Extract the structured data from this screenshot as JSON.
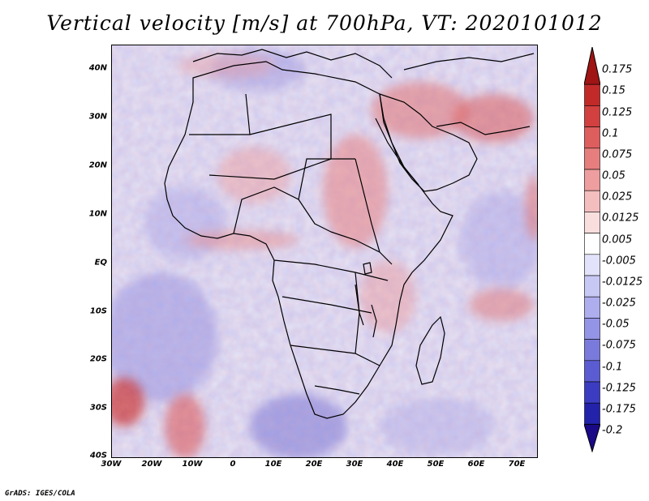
{
  "title": "Vertical velocity [m/s] at 700hPa, VT: 2020101012",
  "credit": "GrADS: IGES/COLA",
  "map": {
    "lat_range": [
      -40,
      45
    ],
    "lon_range": [
      -30,
      75
    ],
    "lat_labels": [
      "40N",
      "30N",
      "20N",
      "10N",
      "EQ",
      "10S",
      "20S",
      "30S",
      "40S"
    ],
    "lon_labels": [
      "30W",
      "20W",
      "10W",
      "0",
      "10E",
      "20E",
      "30E",
      "40E",
      "50E",
      "60E",
      "70E"
    ]
  },
  "colorbar": {
    "labels": [
      "0.175",
      "0.15",
      "0.125",
      "0.1",
      "0.075",
      "0.05",
      "0.025",
      "0.0125",
      "0.005",
      "-0.005",
      "-0.0125",
      "-0.025",
      "-0.05",
      "-0.075",
      "-0.1",
      "-0.125",
      "-0.175",
      "-0.2"
    ],
    "colors": [
      "#a01414",
      "#c22a2a",
      "#d24040",
      "#de5e5e",
      "#e67e7e",
      "#ee9e9e",
      "#f4bebe",
      "#f9dede",
      "#ffffff",
      "#e2e2fa",
      "#c8c8f4",
      "#aeaeee",
      "#9494e6",
      "#7a7adc",
      "#5c5cd2",
      "#3c3cc2",
      "#2222aa",
      "#1a0a88"
    ]
  }
}
